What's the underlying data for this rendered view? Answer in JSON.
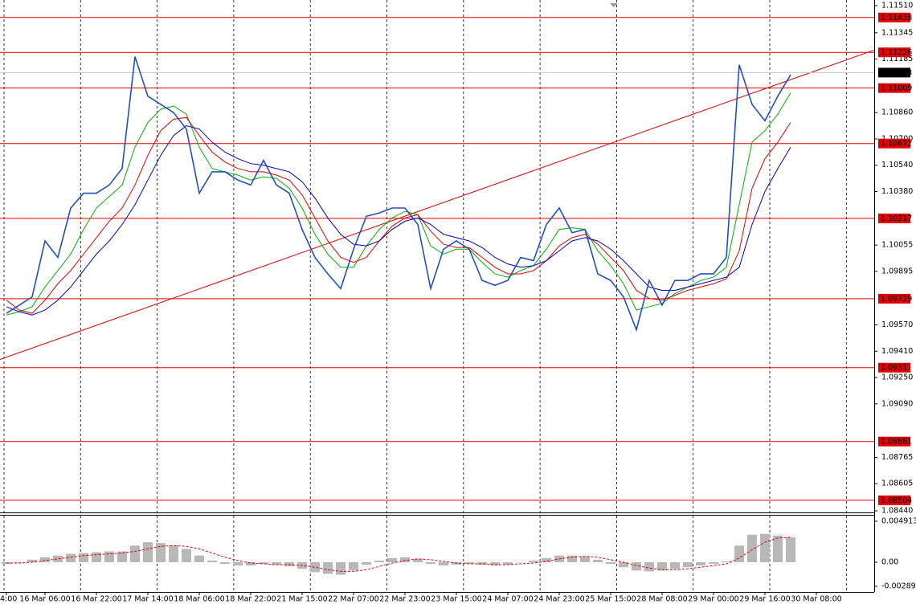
{
  "chart_data": [
    {
      "type": "line",
      "categories": [
        "4:00",
        null,
        null,
        "16 Mar 06:00",
        null,
        null,
        null,
        "16 Mar 22:00",
        null,
        null,
        null,
        "17 Mar 14:00",
        null,
        null,
        null,
        "18 Mar 06:00",
        null,
        null,
        null,
        "18 Mar 22:00",
        null,
        null,
        null,
        "21 Mar 15:00",
        null,
        null,
        null,
        "22 Mar 07:00",
        null,
        null,
        null,
        "22 Mar 23:00",
        null,
        null,
        null,
        "23 Mar 15:00",
        null,
        null,
        null,
        "24 Mar 07:00",
        null,
        null,
        null,
        "24 Mar 23:00",
        null,
        null,
        null,
        "25 Mar 15:00",
        null,
        null,
        null,
        "28 Mar 08:00",
        null,
        null,
        null,
        "29 Mar 00:00",
        null,
        null,
        null,
        "29 Mar 16:00",
        null,
        null,
        null,
        "30 Mar 08:00"
      ],
      "series": [
        {
          "color": "#2050c0",
          "width": 1.6,
          "values": [
            1.0964,
            1.0969,
            1.0974,
            1.1008,
            1.0998,
            1.1028,
            1.1037,
            1.1037,
            1.1042,
            1.1052,
            1.112,
            1.1096,
            1.1091,
            1.1086,
            1.1076,
            1.1037,
            1.105,
            1.105,
            1.1045,
            1.1042,
            1.1057,
            1.1042,
            1.1037,
            1.1015,
            1.0998,
            1.0988,
            1.0979,
            1.1003,
            1.1023,
            1.1025,
            1.1028,
            1.1028,
            1.1018,
            1.0979,
            1.1003,
            1.1008,
            1.1003,
            1.0984,
            1.0981,
            1.0984,
            1.0998,
            1.0996,
            1.1018,
            1.1028,
            1.1013,
            1.1015,
            1.0988,
            1.0984,
            1.0974,
            1.0954,
            1.0984,
            1.0969,
            1.0984,
            1.0984,
            1.0988,
            1.0988,
            1.0998,
            1.1115,
            1.1091,
            1.1081,
            1.1096,
            1.1109,
            null,
            null
          ]
        },
        {
          "color": "#00b000",
          "width": 1,
          "values": [
            1.0963,
            1.0965,
            1.0968,
            1.098,
            1.099,
            1.1,
            1.1015,
            1.1028,
            1.1035,
            1.1042,
            1.1065,
            1.108,
            1.1088,
            1.109,
            1.1085,
            1.1065,
            1.1052,
            1.105,
            1.1048,
            1.1045,
            1.1047,
            1.1046,
            1.104,
            1.1028,
            1.1012,
            1.1,
            1.0992,
            1.0992,
            1.1005,
            1.1015,
            1.1022,
            1.1026,
            1.1024,
            1.1005,
            1.1,
            1.1003,
            1.1003,
            1.0995,
            1.0988,
            1.0986,
            1.099,
            1.0993,
            1.1003,
            1.1015,
            1.1016,
            1.1015,
            1.1002,
            1.0993,
            1.0982,
            1.0966,
            1.0968,
            1.097,
            1.0976,
            1.098,
            1.0984,
            1.0986,
            1.0992,
            1.103,
            1.1068,
            1.1075,
            1.1085,
            1.1098,
            null,
            null
          ]
        },
        {
          "color": "#e00000",
          "width": 1,
          "values": [
            1.0972,
            1.0966,
            1.0964,
            1.0972,
            1.0982,
            1.099,
            1.1,
            1.101,
            1.102,
            1.1028,
            1.1042,
            1.106,
            1.1075,
            1.1082,
            1.1083,
            1.1072,
            1.1062,
            1.1056,
            1.1052,
            1.105,
            1.105,
            1.1048,
            1.1045,
            1.1036,
            1.1022,
            1.1008,
            1.0998,
            1.0995,
            1.0998,
            1.1008,
            1.1017,
            1.1022,
            1.1024,
            1.1014,
            1.1006,
            1.1004,
            1.1004,
            1.0998,
            1.0992,
            1.0988,
            1.0988,
            1.099,
            1.0996,
            1.1005,
            1.101,
            1.1012,
            1.1006,
            1.0998,
            1.099,
            1.0978,
            1.0973,
            1.0972,
            1.0975,
            1.0978,
            1.098,
            1.0982,
            1.0985,
            1.1002,
            1.104,
            1.1058,
            1.1068,
            1.108,
            null,
            null
          ]
        },
        {
          "color": "#0000c0",
          "width": 1,
          "values": [
            1.0968,
            1.0965,
            1.0963,
            1.0966,
            1.0972,
            1.098,
            1.099,
            1.1,
            1.1008,
            1.1018,
            1.103,
            1.1045,
            1.106,
            1.1072,
            1.1078,
            1.1076,
            1.1068,
            1.1062,
            1.1058,
            1.1055,
            1.1054,
            1.1052,
            1.105,
            1.1044,
            1.1034,
            1.1022,
            1.1012,
            1.1006,
            1.1005,
            1.1008,
            1.1015,
            1.102,
            1.1022,
            1.1018,
            1.1012,
            1.101,
            1.1008,
            1.1004,
            1.0998,
            1.0994,
            1.0992,
            1.0993,
            1.0996,
            1.1002,
            1.1008,
            1.101,
            1.1008,
            1.1003,
            1.0996,
            1.0988,
            1.098,
            1.0978,
            1.0978,
            1.098,
            1.0982,
            1.0984,
            1.0986,
            1.0992,
            1.1018,
            1.1038,
            1.1052,
            1.1065,
            null,
            null
          ]
        }
      ],
      "ylim": [
        1.0844,
        1.1151
      ],
      "yticks": [
        {
          "value": 1.1151,
          "label": "1.11510"
        },
        {
          "value": 1.11345,
          "label": "1.11345"
        },
        {
          "value": 1.11185,
          "label": "1.11185"
        },
        {
          "value": 1.1086,
          "label": "1.10860"
        },
        {
          "value": 1.107,
          "label": "1.10700"
        },
        {
          "value": 1.1054,
          "label": "1.10540"
        },
        {
          "value": 1.1038,
          "label": "1.10380"
        },
        {
          "value": 1.10055,
          "label": "1.10055"
        },
        {
          "value": 1.09895,
          "label": "1.09895"
        },
        {
          "value": 1.0957,
          "label": "1.09570"
        },
        {
          "value": 1.0941,
          "label": "1.09410"
        },
        {
          "value": 1.0925,
          "label": "1.09250"
        },
        {
          "value": 1.0909,
          "label": "1.09090"
        },
        {
          "value": 1.08765,
          "label": "1.08765"
        },
        {
          "value": 1.08605,
          "label": "1.08605"
        },
        {
          "value": 1.0844,
          "label": "1.08440"
        }
      ],
      "levels": [
        1.11438,
        1.11226,
        1.11009,
        1.10672,
        1.10217,
        1.09729,
        1.0931,
        1.08861,
        1.08504
      ],
      "level_color": "#e00000",
      "current_price": 1.11103,
      "trendline": [
        1.0936,
        1.1124
      ]
    },
    {
      "type": "macd",
      "histogram": {
        "color": "#b8b8b8",
        "values": [
          -0.0002,
          0.0,
          0.0003,
          0.0006,
          0.0008,
          0.001,
          0.0011,
          0.0012,
          0.0013,
          0.0013,
          0.002,
          0.0024,
          0.0023,
          0.002,
          0.0016,
          0.0008,
          0.0002,
          -0.0002,
          -0.0004,
          -0.0004,
          -0.0002,
          -0.0003,
          -0.0005,
          -0.0008,
          -0.0012,
          -0.0014,
          -0.0015,
          -0.001,
          -0.0003,
          0.0002,
          0.0005,
          0.0006,
          0.0004,
          -0.0002,
          -0.0004,
          -0.0003,
          -0.0002,
          -0.0003,
          -0.0004,
          -0.0003,
          0.0,
          0.0002,
          0.0005,
          0.0008,
          0.0008,
          0.0007,
          0.0003,
          -0.0002,
          -0.0006,
          -0.001,
          -0.0011,
          -0.001,
          -0.0008,
          -0.0006,
          -0.0004,
          -0.0002,
          0.0001,
          0.002,
          0.0033,
          0.0034,
          0.0032,
          0.003,
          null,
          null
        ]
      },
      "signal": {
        "color": "#e00000",
        "values": [
          -0.0001,
          -0.0001,
          0.0,
          0.0002,
          0.0004,
          0.0006,
          0.0008,
          0.0009,
          0.001,
          0.0011,
          0.0013,
          0.0016,
          0.0019,
          0.002,
          0.0019,
          0.0016,
          0.0011,
          0.0006,
          0.0002,
          -0.0001,
          -0.0002,
          -0.0003,
          -0.0003,
          -0.0004,
          -0.0006,
          -0.0009,
          -0.0011,
          -0.0011,
          -0.0009,
          -0.0005,
          -0.0001,
          0.0002,
          0.0004,
          0.0003,
          0.0001,
          -0.0001,
          -0.0002,
          -0.0002,
          -0.0003,
          -0.0003,
          -0.0002,
          -0.0001,
          0.0001,
          0.0004,
          0.0006,
          0.0007,
          0.0006,
          0.0003,
          0.0,
          -0.0004,
          -0.0007,
          -0.0009,
          -0.0009,
          -0.0008,
          -0.0006,
          -0.0004,
          -0.0002,
          0.0005,
          0.0015,
          0.0024,
          0.0029,
          0.003,
          null,
          null
        ]
      },
      "ylim": [
        -0.002893,
        0.004913
      ],
      "yticks": [
        0.004913,
        {
          "value": 0,
          "label": "0.00"
        },
        -0.002893
      ]
    }
  ]
}
